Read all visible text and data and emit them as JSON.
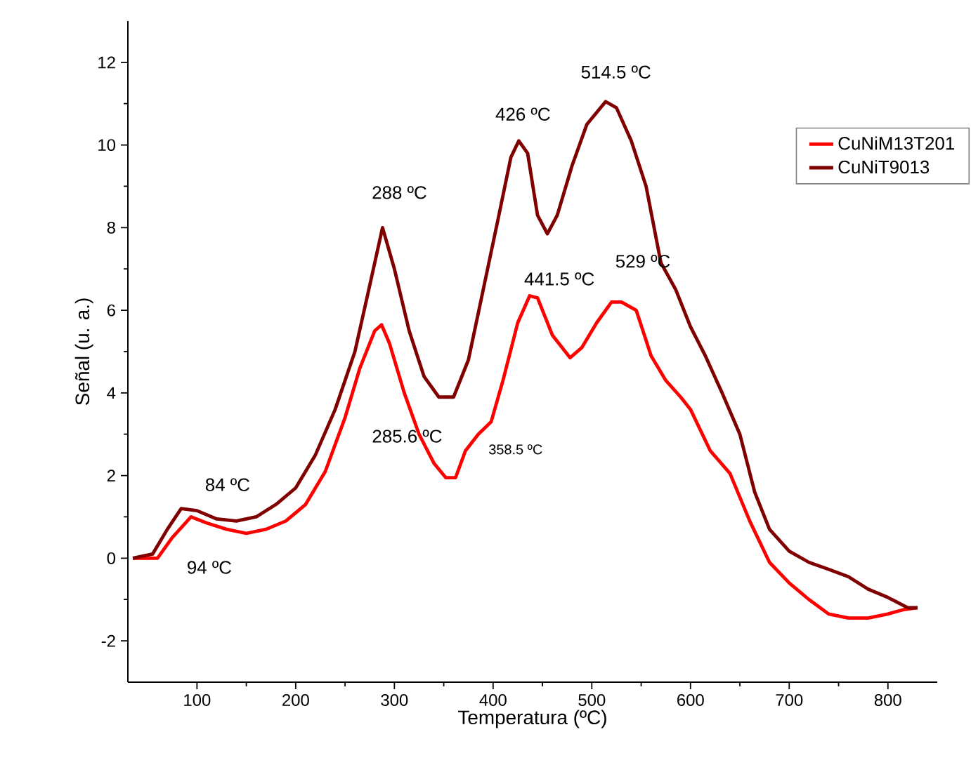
{
  "chart_data": {
    "type": "line",
    "xlabel": "Temperatura (ºC)",
    "ylabel": "Señal (u. a.)",
    "xlim": [
      30,
      850
    ],
    "ylim": [
      -3,
      13
    ],
    "xticks": [
      100,
      200,
      300,
      400,
      500,
      600,
      700,
      800
    ],
    "yticks": [
      -2,
      0,
      2,
      4,
      6,
      8,
      10,
      12
    ],
    "grid": false,
    "legend": "top right",
    "marker": "none",
    "line_style": "solid",
    "series": [
      {
        "name": "CuNiM13T201",
        "color": "#ff0000",
        "x": [
          35,
          60,
          75,
          94,
          110,
          130,
          150,
          170,
          190,
          210,
          230,
          250,
          265,
          280,
          287,
          295,
          310,
          325,
          340,
          352,
          362,
          372,
          385,
          398,
          410,
          425,
          437,
          445,
          460,
          478,
          490,
          505,
          520,
          530,
          545,
          560,
          575,
          590,
          600,
          620,
          640,
          660,
          680,
          700,
          720,
          740,
          760,
          780,
          800,
          815,
          830
        ],
        "values": [
          0,
          0,
          0.5,
          1.0,
          0.85,
          0.7,
          0.6,
          0.7,
          0.9,
          1.3,
          2.1,
          3.4,
          4.6,
          5.5,
          5.65,
          5.2,
          4.0,
          3.0,
          2.3,
          1.95,
          1.95,
          2.6,
          3.0,
          3.3,
          4.3,
          5.7,
          6.35,
          6.3,
          5.4,
          4.85,
          5.1,
          5.7,
          6.2,
          6.2,
          6.0,
          4.9,
          4.3,
          3.9,
          3.6,
          2.6,
          2.05,
          0.9,
          -0.1,
          -0.6,
          -1.0,
          -1.35,
          -1.45,
          -1.45,
          -1.35,
          -1.25,
          -1.2
        ]
      },
      {
        "name": "CuNiT9013",
        "color": "#800000",
        "x": [
          35,
          55,
          70,
          84,
          100,
          120,
          140,
          160,
          180,
          200,
          220,
          240,
          260,
          275,
          288,
          300,
          315,
          330,
          345,
          360,
          375,
          390,
          405,
          418,
          426,
          435,
          445,
          455,
          465,
          480,
          495,
          514,
          525,
          540,
          555,
          570,
          585,
          600,
          615,
          632,
          650,
          665,
          680,
          700,
          720,
          740,
          760,
          780,
          800,
          820,
          830
        ],
        "values": [
          0,
          0.1,
          0.7,
          1.2,
          1.15,
          0.95,
          0.9,
          1.0,
          1.3,
          1.7,
          2.5,
          3.6,
          5.0,
          6.6,
          8.0,
          7.0,
          5.5,
          4.4,
          3.9,
          3.9,
          4.8,
          6.5,
          8.2,
          9.7,
          10.1,
          9.8,
          8.3,
          7.85,
          8.3,
          9.5,
          10.5,
          11.05,
          10.9,
          10.1,
          9.0,
          7.15,
          6.5,
          5.6,
          4.9,
          4.0,
          3.0,
          1.6,
          0.7,
          0.17,
          -0.1,
          -0.27,
          -0.45,
          -0.75,
          -0.95,
          -1.2,
          -1.2
        ]
      }
    ],
    "annotations": [
      {
        "text": "84 ºC",
        "x": 84,
        "y": 1.2
      },
      {
        "text": "94 ºC",
        "x": 94,
        "y": 1.0
      },
      {
        "text": "288 ºC",
        "x": 288,
        "y": 8.0
      },
      "285.6 ºC",
      "358.5 ºC",
      {
        "text": "426 ºC",
        "x": 426,
        "y": 10.1
      },
      {
        "text": "441.5 ºC",
        "x": 441.5,
        "y": 6.35
      },
      {
        "text": "514.5 ºC",
        "x": 514.5,
        "y": 11.05
      },
      {
        "text": "529 ºC",
        "x": 529,
        "y": 6.2
      }
    ]
  }
}
